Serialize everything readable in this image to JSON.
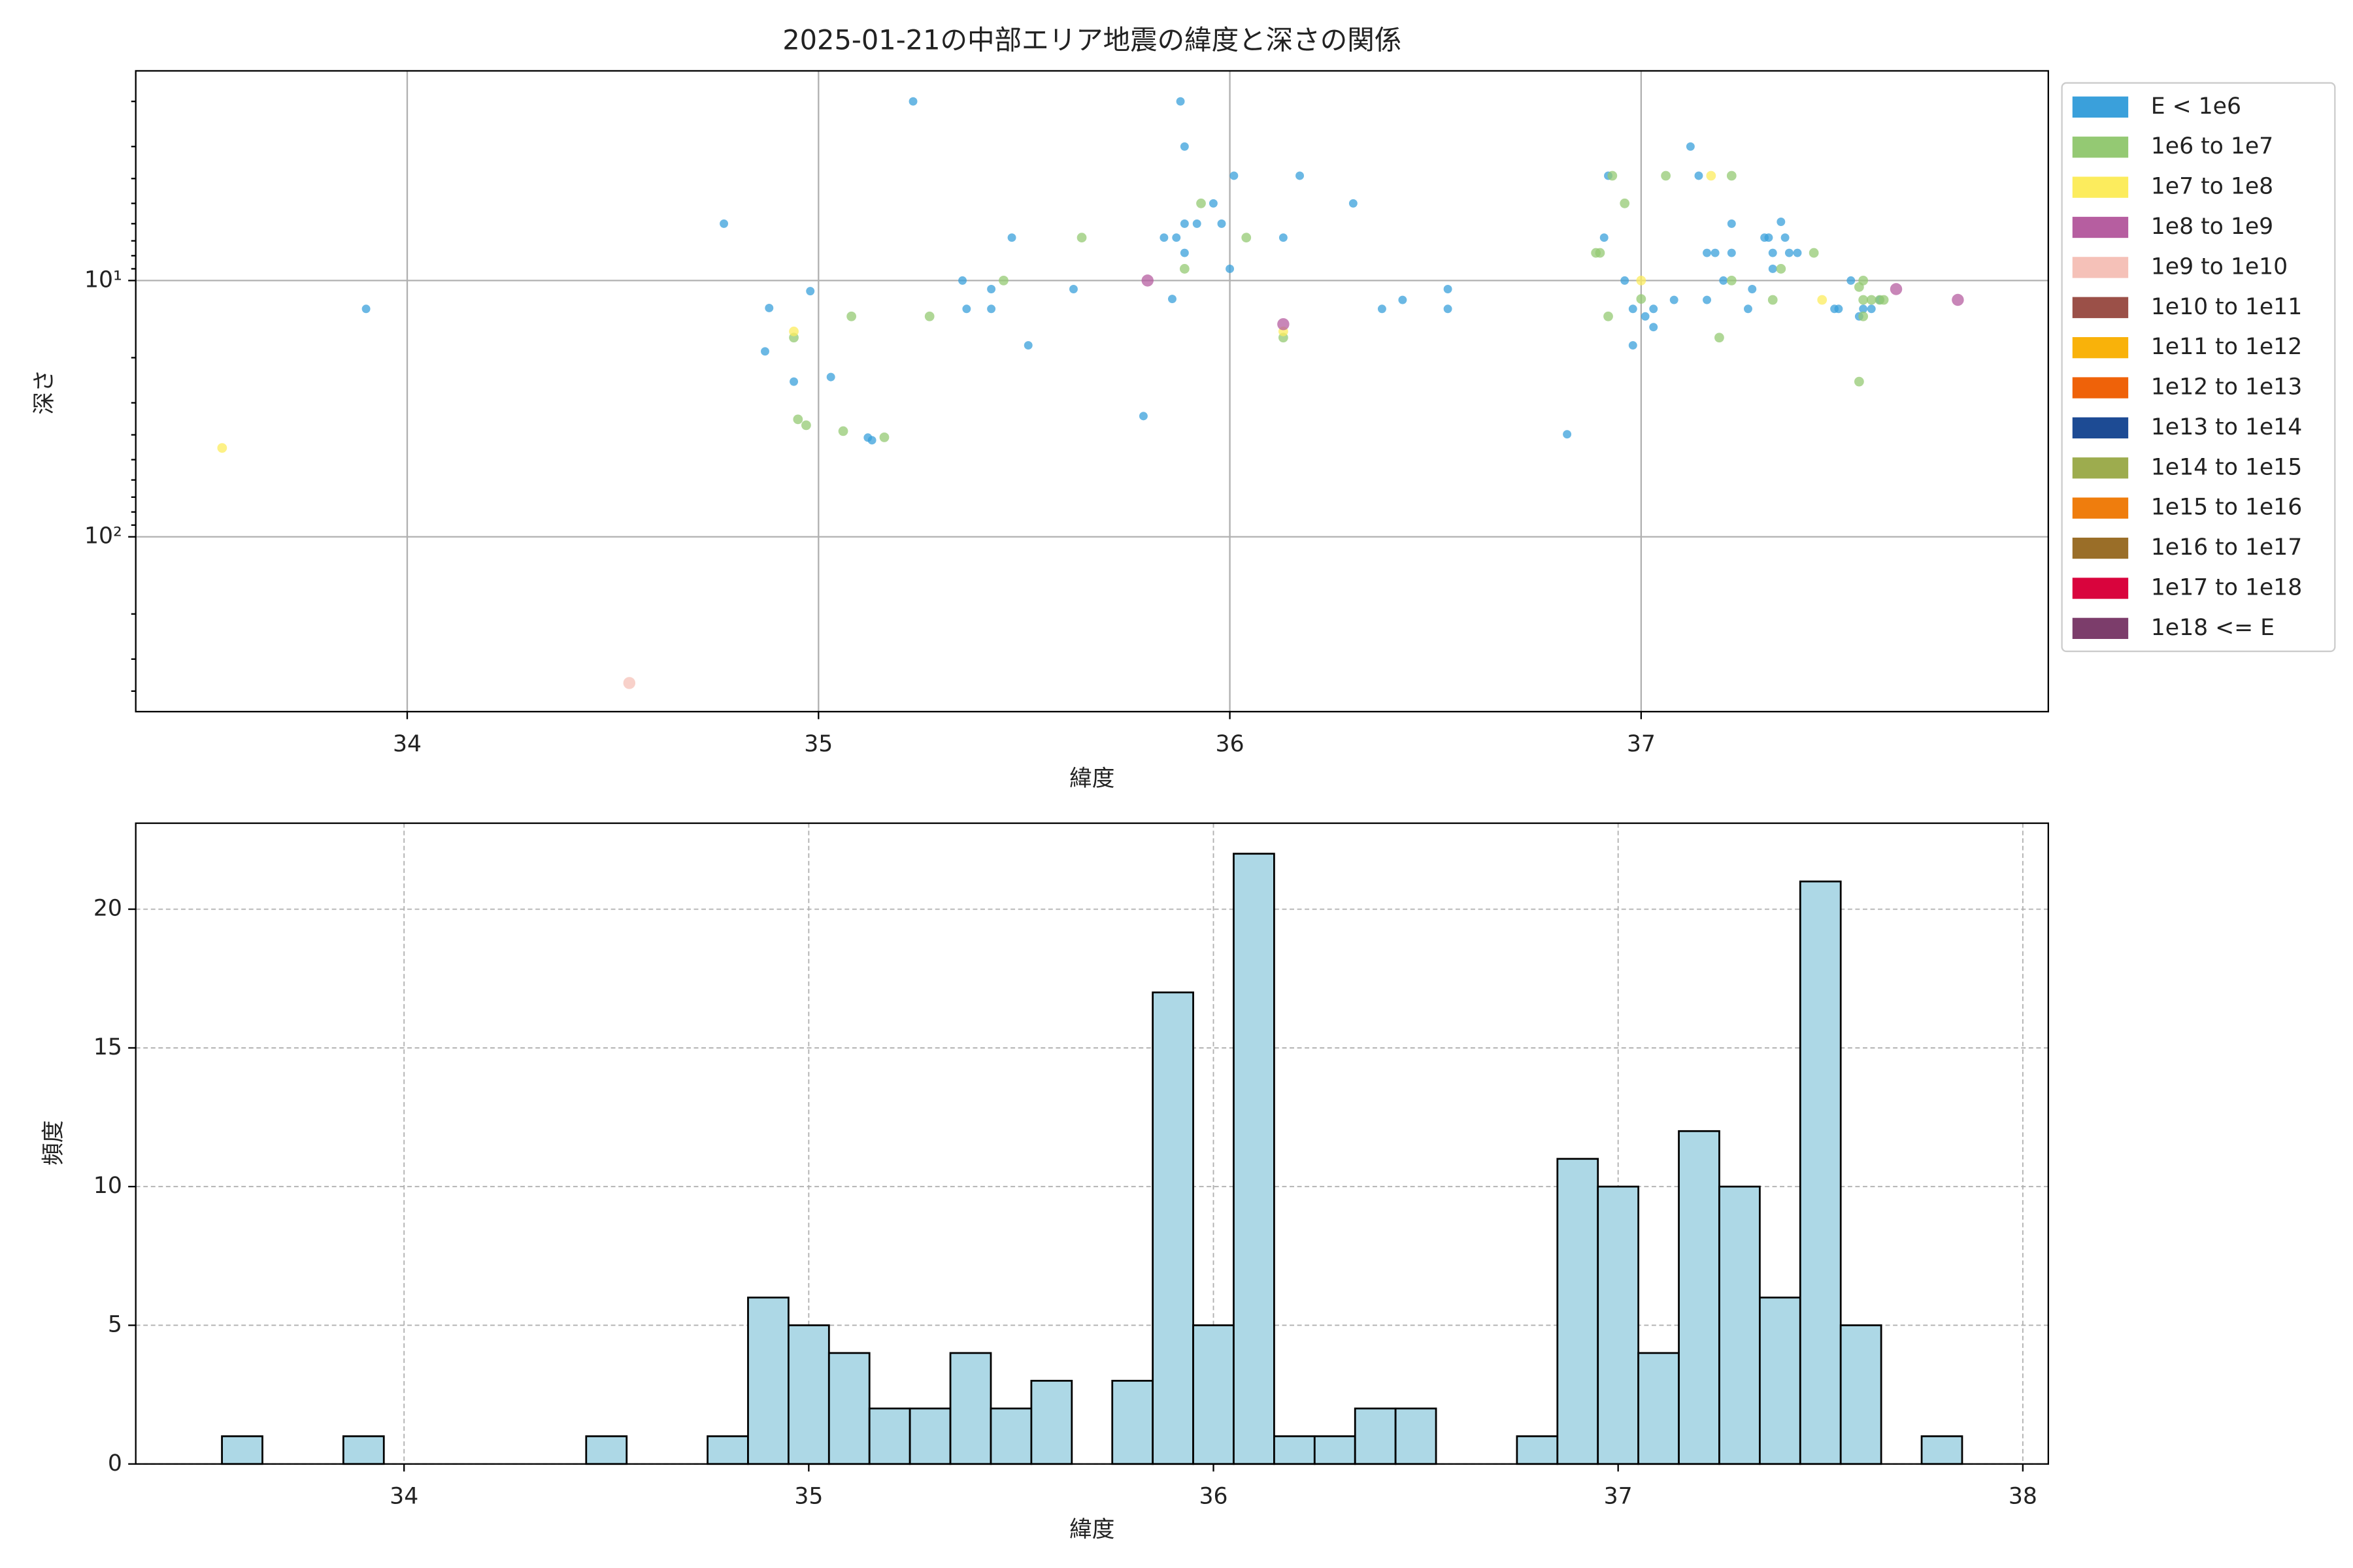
{
  "chart_data": [
    {
      "type": "scatter",
      "title": "2025-01-21の中部エリア地震の緯度と深さの関係",
      "xlabel": "緯度",
      "ylabel": "深さ",
      "xlim": [
        33.34,
        37.99
      ],
      "xticks": [
        34,
        35,
        36,
        37
      ],
      "ylim": [
        481,
        1.52
      ],
      "yscale": "log",
      "yticks": [
        {
          "value": 10,
          "label": "10¹"
        },
        {
          "value": 100,
          "label": "10²"
        }
      ],
      "yminorticks": [
        2,
        3,
        4,
        5,
        6,
        7,
        8,
        9,
        20,
        30,
        40,
        50,
        60,
        70,
        80,
        90,
        200,
        300,
        400
      ],
      "grid": true,
      "legend": "outside upper right",
      "series": [
        {
          "name": "E < 1e6",
          "color": "#3aa0db",
          "x": [
            33.9,
            34.77,
            34.88,
            34.87,
            34.94,
            34.98,
            35.03,
            35.12,
            35.13,
            35.23,
            35.35,
            35.36,
            35.42,
            35.42,
            35.47,
            35.51,
            35.62,
            35.79,
            35.86,
            35.84,
            35.87,
            35.88,
            35.89,
            35.89,
            35.89,
            35.92,
            35.96,
            35.98,
            36.0,
            36.01,
            36.13,
            36.17,
            36.3,
            36.37,
            36.42,
            36.53,
            36.53,
            36.82,
            36.92,
            36.91,
            36.96,
            36.98,
            36.98,
            37.01,
            37.03,
            37.03,
            37.08,
            37.12,
            37.14,
            37.16,
            37.16,
            37.18,
            37.2,
            37.22,
            37.22,
            37.26,
            37.27,
            37.3,
            37.31,
            37.32,
            37.32,
            37.34,
            37.35,
            37.36,
            37.38,
            37.47,
            37.48,
            37.51,
            37.53,
            37.54,
            37.56,
            37.58
          ],
          "y": [
            12.9,
            6.0,
            12.8,
            18.9,
            24.8,
            11.0,
            23.8,
            41,
            42,
            2.0,
            10,
            12.9,
            10.8,
            12.9,
            6.8,
            17.9,
            10.8,
            33.8,
            11.8,
            6.8,
            6.8,
            2.0,
            3.0,
            7.8,
            6.0,
            6.0,
            5.0,
            6.0,
            9.0,
            3.9,
            6.8,
            3.9,
            5.0,
            12.9,
            11.9,
            10.8,
            12.9,
            39.8,
            3.9,
            6.8,
            10,
            17.9,
            12.9,
            13.8,
            15.2,
            12.9,
            11.9,
            3.0,
            3.9,
            11.9,
            7.8,
            7.8,
            10,
            6.0,
            7.8,
            12.9,
            10.8,
            6.8,
            6.8,
            7.8,
            9.0,
            5.9,
            6.8,
            7.8,
            7.8,
            12.9,
            12.9,
            10,
            13.8,
            12.9,
            12.9,
            11.9
          ]
        },
        {
          "name": "1e6 to 1e7",
          "color": "#94c973",
          "x": [
            34.94,
            34.95,
            34.97,
            35.06,
            35.08,
            35.16,
            35.27,
            35.45,
            35.64,
            35.89,
            35.93,
            36.04,
            36.13,
            36.89,
            36.9,
            36.93,
            36.92,
            36.96,
            37.0,
            37.06,
            37.19,
            37.22,
            37.22,
            37.32,
            37.34,
            37.42,
            37.53,
            37.53,
            37.54,
            37.54,
            37.56,
            37.58,
            37.59,
            37.54
          ],
          "y": [
            16.7,
            34.8,
            36.7,
            38.7,
            13.8,
            40.9,
            13.8,
            10,
            6.8,
            9.0,
            5.0,
            6.8,
            16.7,
            7.8,
            7.8,
            3.9,
            13.8,
            5.0,
            11.8,
            3.9,
            16.7,
            3.9,
            10,
            11.9,
            9.0,
            7.8,
            24.8,
            10.6,
            10,
            11.9,
            11.9,
            11.9,
            11.9,
            13.8
          ]
        },
        {
          "name": "1e7 to 1e8",
          "color": "#fcec5d",
          "x": [
            33.55,
            34.94,
            36.13,
            37.0,
            37.17,
            37.44
          ],
          "y": [
            45,
            15.8,
            15.8,
            10,
            3.9,
            11.9
          ]
        },
        {
          "name": "1e8 to 1e9",
          "color": "#b65ea0",
          "x": [
            35.8,
            36.13,
            37.62,
            37.77
          ],
          "y": [
            10,
            14.8,
            10.8,
            11.9
          ]
        },
        {
          "name": "1e9 to 1e10",
          "color": "#f5c1b8",
          "x": [
            34.54
          ],
          "y": [
            372
          ]
        },
        {
          "name": "1e10 to 1e11",
          "color": "#9b5048",
          "x": [],
          "y": []
        },
        {
          "name": "1e11 to 1e12",
          "color": "#f9b20a",
          "x": [],
          "y": []
        },
        {
          "name": "1e12 to 1e13",
          "color": "#ef6209",
          "x": [],
          "y": []
        },
        {
          "name": "1e13 to 1e14",
          "color": "#1d4b94",
          "x": [],
          "y": []
        },
        {
          "name": "1e14 to 1e15",
          "color": "#9dac4e",
          "x": [],
          "y": []
        },
        {
          "name": "1e15 to 1e16",
          "color": "#ef7d0d",
          "x": [],
          "y": []
        },
        {
          "name": "1e16 to 1e17",
          "color": "#9a6e28",
          "x": [],
          "y": []
        },
        {
          "name": "1e17 to 1e18",
          "color": "#d9043d",
          "x": [],
          "y": []
        },
        {
          "name": "1e18 <= E",
          "color": "#7c3d6b",
          "x": [],
          "y": []
        }
      ]
    },
    {
      "type": "histogram",
      "xlabel": "緯度",
      "ylabel": "頻度",
      "xlim": [
        33.337,
        38.063
      ],
      "xticks": [
        34,
        35,
        36,
        37,
        38
      ],
      "ylim": [
        0,
        23.1
      ],
      "yticks": [
        0,
        5,
        10,
        15,
        20
      ],
      "grid": true,
      "color": "#add8e6",
      "edgecolor": "#000000",
      "bins": [
        33.55,
        33.65,
        33.75,
        33.85,
        33.95,
        34.05,
        34.15,
        34.25,
        34.35,
        34.45,
        34.55,
        34.65,
        34.75,
        34.85,
        34.95,
        35.05,
        35.15,
        35.25,
        35.35,
        35.45,
        35.55,
        35.65,
        35.75,
        35.85,
        35.95,
        36.05,
        36.15,
        36.25,
        36.35,
        36.45,
        36.55,
        36.65,
        36.75,
        36.85,
        36.95,
        37.05,
        37.15,
        37.25,
        37.35,
        37.45,
        37.55,
        37.65,
        37.75,
        37.85
      ],
      "values": [
        1,
        0,
        0,
        1,
        0,
        0,
        0,
        0,
        0,
        1,
        0,
        0,
        1,
        6,
        5,
        4,
        2,
        2,
        4,
        2,
        3,
        0,
        3,
        17,
        5,
        22,
        1,
        1,
        2,
        2,
        0,
        0,
        1,
        11,
        10,
        4,
        12,
        10,
        6,
        21,
        5,
        0,
        1
      ]
    }
  ]
}
